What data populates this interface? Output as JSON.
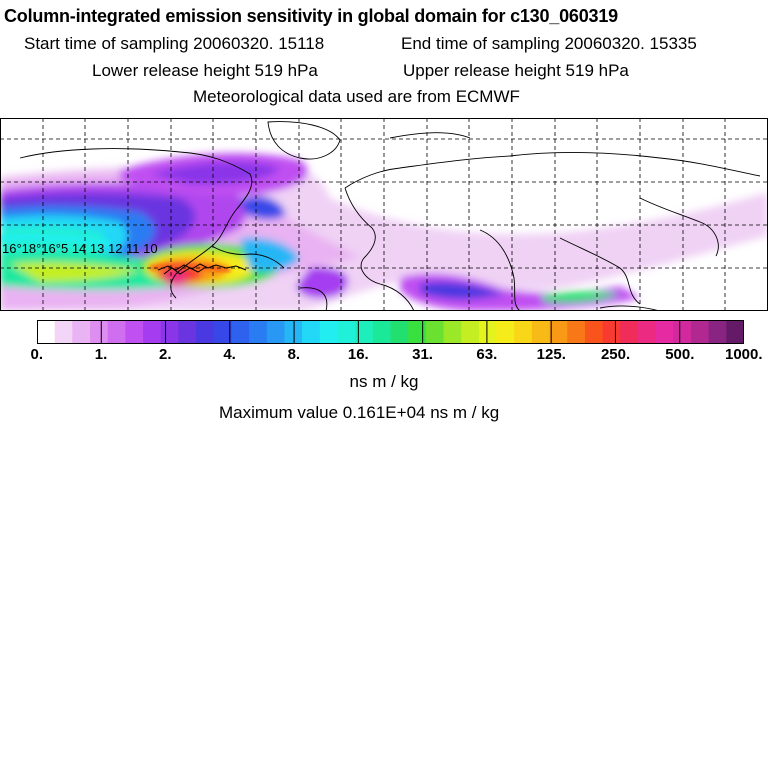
{
  "header": {
    "title": "Column-integrated emission sensitivity in global domain for c130_060319",
    "start": "Start time of sampling 20060320. 15118",
    "end": "End time of sampling 20060320. 15335",
    "lower": "Lower release height  519 hPa",
    "upper": "Upper release height  519 hPa",
    "met": "Meteorological data used are from ECMWF"
  },
  "map": {
    "track_labels": "16°18°16°5 14 13 12 11 10",
    "colors": {
      "ocean": "#ffffff",
      "coast": "#000000",
      "grid": "#000000"
    }
  },
  "legend": {
    "ticks": [
      "0.",
      "1.",
      "2.",
      "4.",
      "8.",
      "16.",
      "31.",
      "63.",
      "125.",
      "250.",
      "500.",
      "1000."
    ],
    "colors": [
      "#ffffff",
      "#f3d6f7",
      "#eab3f3",
      "#de8ef0",
      "#d06ef0",
      "#c050f2",
      "#a53cf0",
      "#8a36e8",
      "#6a34e0",
      "#4a38e0",
      "#3848e8",
      "#2e62ee",
      "#2a7cf2",
      "#2898f4",
      "#26b6f6",
      "#22d8f6",
      "#22eef2",
      "#20f0d8",
      "#1eeebc",
      "#1ce89a",
      "#22e070",
      "#38e040",
      "#6ae030",
      "#9ae828",
      "#c4ee22",
      "#e4f21e",
      "#f6ec1a",
      "#f8d618",
      "#f8ba16",
      "#f89a16",
      "#f87818",
      "#f8541c",
      "#f83a30",
      "#f02c5a",
      "#ec2a82",
      "#e62aa2",
      "#d22a9e",
      "#b02890",
      "#8a2482",
      "#641a66"
    ],
    "units": "ns m / kg",
    "max_label": "Maximum value  0.161E+04 ns m / kg"
  }
}
